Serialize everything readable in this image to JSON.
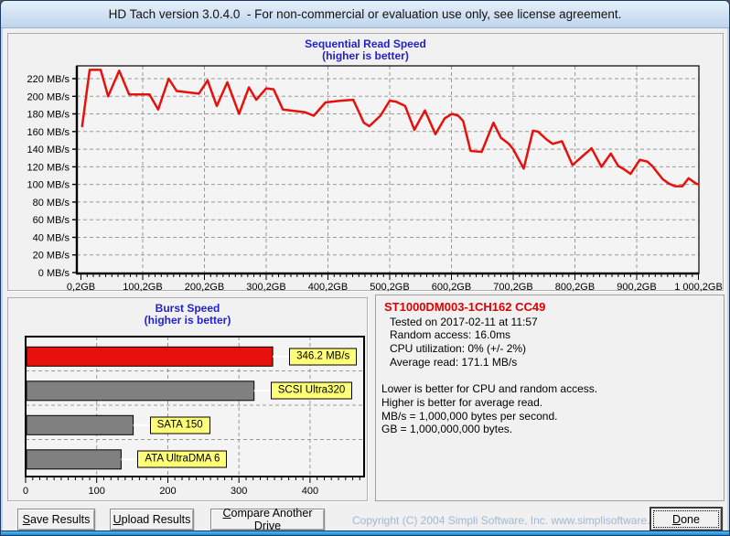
{
  "window": {
    "title": "HD Tach version 3.0.4.0  - For non-commercial or evaluation use only, see license agreement.",
    "copyright": "Copyright (C) 2004 Simpli Software, Inc. www.simplisoftware.com"
  },
  "buttons": {
    "save": "Save Results",
    "upload": "Upload Results",
    "compare": "Compare Another Drive",
    "done": "Done"
  },
  "drive_info": {
    "model": "ST1000DM003-1CH162 CC49",
    "lines": [
      "Tested on 2017-02-11 at 11:57",
      "Random access: 16.0ms",
      "CPU utilization: 0% (+/- 2%)",
      "Average read: 171.1 MB/s"
    ],
    "notes": [
      "Lower is better for CPU and random access.",
      "Higher is better for average read.",
      "MB/s = 1,000,000 bytes per second.",
      "GB = 1,000,000,000 bytes."
    ]
  },
  "colors": {
    "accent_red": "#e8100c",
    "bar_gray": "#808080",
    "label_yellow": "#ffff78",
    "title_blue": "#2222cc",
    "copyright_blue": "#a2b8d2",
    "grid_gray": "#999999"
  },
  "chart_data": [
    {
      "type": "line",
      "title": "Sequential Read Speed",
      "subtitle": "(higher is better)",
      "x_axis": {
        "unit": "GB",
        "min": 0,
        "max": 1000,
        "tick_values": [
          0,
          100,
          200,
          300,
          400,
          500,
          600,
          700,
          800,
          900,
          1000
        ],
        "tick_labels": [
          "0,2GB",
          "100,2GB",
          "200,2GB",
          "300,2GB",
          "400,2GB",
          "500,2GB",
          "600,2GB",
          "700,2GB",
          "800,2GB",
          "900,2GB",
          "1 000,2GB"
        ],
        "minor_tick_step": 10
      },
      "y_axis": {
        "unit": "MB/s",
        "min": 0,
        "tick_max": 220,
        "tick_step": 20,
        "tick_suffix": " MB/s"
      },
      "grid": true,
      "series": [
        {
          "name": "sequential-read-speed",
          "color": "#e8100c",
          "points": [
            [
              2,
              166
            ],
            [
              14,
              230
            ],
            [
              32,
              230
            ],
            [
              44,
              200
            ],
            [
              62,
              229
            ],
            [
              78,
              202
            ],
            [
              111,
              202
            ],
            [
              125,
              185
            ],
            [
              142,
              220
            ],
            [
              155,
              206
            ],
            [
              191,
              203
            ],
            [
              205,
              218
            ],
            [
              220,
              189
            ],
            [
              237,
              216
            ],
            [
              256,
              180
            ],
            [
              272,
              210
            ],
            [
              284,
              196
            ],
            [
              300,
              209
            ],
            [
              312,
              208
            ],
            [
              327,
              185
            ],
            [
              362,
              182
            ],
            [
              377,
              178
            ],
            [
              396,
              193
            ],
            [
              420,
              195
            ],
            [
              441,
              196
            ],
            [
              458,
              170
            ],
            [
              467,
              166
            ],
            [
              485,
              178
            ],
            [
              500,
              195
            ],
            [
              510,
              194
            ],
            [
              525,
              189
            ],
            [
              540,
              162
            ],
            [
              557,
              184
            ],
            [
              574,
              157
            ],
            [
              589,
              175
            ],
            [
              601,
              180
            ],
            [
              611,
              178
            ],
            [
              619,
              172
            ],
            [
              631,
              138
            ],
            [
              649,
              137
            ],
            [
              668,
              170
            ],
            [
              680,
              153
            ],
            [
              693,
              146
            ],
            [
              700,
              140
            ],
            [
              717,
              118
            ],
            [
              732,
              161
            ],
            [
              740,
              160
            ],
            [
              754,
              151
            ],
            [
              764,
              146
            ],
            [
              779,
              149
            ],
            [
              796,
              122
            ],
            [
              827,
              141
            ],
            [
              843,
              120
            ],
            [
              858,
              135
            ],
            [
              870,
              121
            ],
            [
              880,
              117
            ],
            [
              890,
              112
            ],
            [
              905,
              128
            ],
            [
              917,
              126
            ],
            [
              925,
              121
            ],
            [
              942,
              106
            ],
            [
              952,
              101
            ],
            [
              962,
              98
            ],
            [
              974,
              98
            ],
            [
              984,
              107
            ],
            [
              996,
              101
            ],
            [
              1000,
              100
            ]
          ]
        }
      ]
    },
    {
      "type": "bar-horizontal",
      "title": "Burst Speed",
      "subtitle": "(higher is better)",
      "x_axis": {
        "min": 0,
        "max": 476,
        "tick_values": [
          0,
          100,
          200,
          300,
          400
        ],
        "minor_tick_step": 10
      },
      "bars": [
        {
          "label": "346.2 MB/s",
          "value": 346.2,
          "color": "#e8100c"
        },
        {
          "label": "SCSI Ultra320",
          "value": 320,
          "color": "#808080"
        },
        {
          "label": "SATA 150",
          "value": 150,
          "color": "#808080"
        },
        {
          "label": "ATA UltraDMA 6",
          "value": 133,
          "color": "#808080"
        }
      ],
      "label_style": {
        "bg": "#ffff78",
        "border": "#000000"
      }
    }
  ]
}
